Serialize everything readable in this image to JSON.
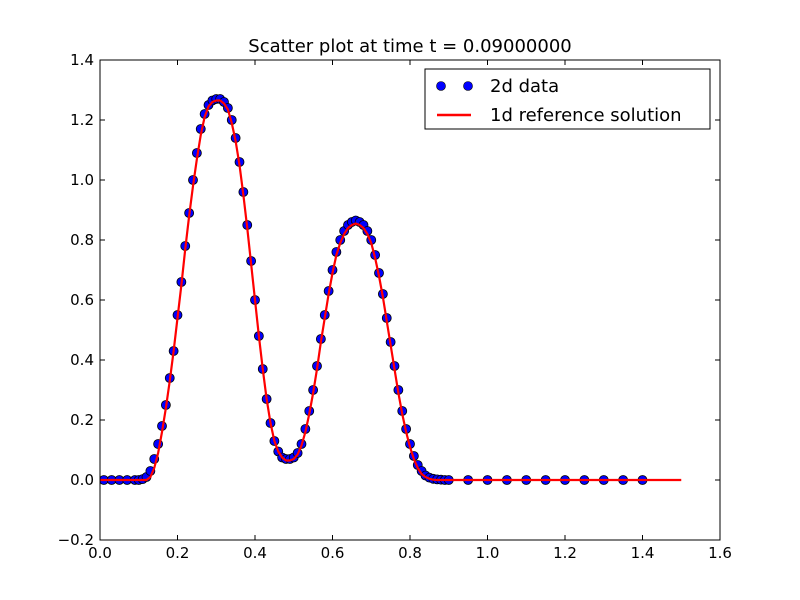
{
  "chart_data": {
    "type": "scatter",
    "title": "Scatter plot at time t =      0.09000000",
    "xlabel": "",
    "ylabel": "",
    "xlim": [
      0.0,
      1.6
    ],
    "ylim": [
      -0.2,
      1.4
    ],
    "xticks": [
      0.0,
      0.2,
      0.4,
      0.6,
      0.8,
      1.0,
      1.2,
      1.4,
      1.6
    ],
    "yticks": [
      -0.2,
      0.0,
      0.2,
      0.4,
      0.6,
      0.8,
      1.0,
      1.2,
      1.4
    ],
    "xtick_labels": [
      "0.0",
      "0.2",
      "0.4",
      "0.6",
      "0.8",
      "1.0",
      "1.2",
      "1.4",
      "1.6"
    ],
    "ytick_labels": [
      "−0.2",
      "0.0",
      "0.2",
      "0.4",
      "0.6",
      "0.8",
      "1.0",
      "1.2",
      "1.4"
    ],
    "grid": false,
    "legend_position": "top-right",
    "series": [
      {
        "name": "2d data",
        "kind": "scatter",
        "color": "#0000ff",
        "edge_color": "#000000",
        "x": [
          0.01,
          0.03,
          0.05,
          0.07,
          0.09,
          0.1,
          0.11,
          0.12,
          0.13,
          0.14,
          0.15,
          0.16,
          0.17,
          0.18,
          0.19,
          0.2,
          0.21,
          0.22,
          0.23,
          0.24,
          0.25,
          0.26,
          0.27,
          0.28,
          0.29,
          0.3,
          0.31,
          0.32,
          0.33,
          0.34,
          0.35,
          0.36,
          0.37,
          0.38,
          0.39,
          0.4,
          0.41,
          0.42,
          0.43,
          0.44,
          0.45,
          0.46,
          0.47,
          0.48,
          0.49,
          0.5,
          0.51,
          0.52,
          0.53,
          0.54,
          0.55,
          0.56,
          0.57,
          0.58,
          0.59,
          0.6,
          0.61,
          0.62,
          0.63,
          0.64,
          0.65,
          0.66,
          0.67,
          0.68,
          0.69,
          0.7,
          0.71,
          0.72,
          0.73,
          0.74,
          0.75,
          0.76,
          0.77,
          0.78,
          0.79,
          0.8,
          0.81,
          0.82,
          0.83,
          0.84,
          0.85,
          0.86,
          0.87,
          0.88,
          0.89,
          0.9,
          0.95,
          1.0,
          1.05,
          1.1,
          1.15,
          1.2,
          1.25,
          1.3,
          1.35,
          1.4
        ],
        "y": [
          0.0,
          0.0,
          0.0,
          0.0,
          0.0,
          0.0,
          0.003,
          0.01,
          0.03,
          0.07,
          0.12,
          0.18,
          0.25,
          0.34,
          0.43,
          0.55,
          0.66,
          0.78,
          0.89,
          1.0,
          1.09,
          1.17,
          1.22,
          1.25,
          1.265,
          1.27,
          1.27,
          1.26,
          1.24,
          1.2,
          1.14,
          1.06,
          0.96,
          0.85,
          0.73,
          0.6,
          0.48,
          0.37,
          0.27,
          0.19,
          0.13,
          0.095,
          0.075,
          0.07,
          0.07,
          0.075,
          0.09,
          0.12,
          0.17,
          0.23,
          0.3,
          0.38,
          0.47,
          0.55,
          0.63,
          0.7,
          0.76,
          0.8,
          0.83,
          0.85,
          0.86,
          0.865,
          0.86,
          0.85,
          0.83,
          0.8,
          0.75,
          0.69,
          0.62,
          0.54,
          0.46,
          0.38,
          0.3,
          0.23,
          0.17,
          0.12,
          0.08,
          0.05,
          0.03,
          0.015,
          0.008,
          0.004,
          0.002,
          0.001,
          0.0,
          0.0,
          0.0,
          0.0,
          0.0,
          0.0,
          0.0,
          0.0,
          0.0,
          0.0,
          0.0,
          0.0
        ]
      },
      {
        "name": "1d reference solution",
        "kind": "line",
        "color": "#ff0000",
        "x": [
          0.0,
          0.05,
          0.1,
          0.11,
          0.12,
          0.13,
          0.14,
          0.15,
          0.16,
          0.17,
          0.18,
          0.19,
          0.2,
          0.21,
          0.22,
          0.23,
          0.24,
          0.25,
          0.26,
          0.27,
          0.28,
          0.29,
          0.3,
          0.31,
          0.32,
          0.33,
          0.34,
          0.35,
          0.36,
          0.37,
          0.38,
          0.39,
          0.4,
          0.41,
          0.42,
          0.43,
          0.44,
          0.45,
          0.46,
          0.47,
          0.48,
          0.49,
          0.5,
          0.51,
          0.52,
          0.53,
          0.54,
          0.55,
          0.56,
          0.57,
          0.58,
          0.59,
          0.6,
          0.61,
          0.62,
          0.63,
          0.64,
          0.65,
          0.66,
          0.67,
          0.68,
          0.69,
          0.7,
          0.71,
          0.72,
          0.73,
          0.74,
          0.75,
          0.76,
          0.77,
          0.78,
          0.79,
          0.8,
          0.81,
          0.82,
          0.83,
          0.84,
          0.85,
          0.86,
          0.87,
          0.88,
          0.89,
          0.9,
          1.0,
          1.2,
          1.4,
          1.5
        ],
        "y": [
          0.0,
          0.0,
          0.0,
          0.0,
          0.0,
          0.01,
          0.04,
          0.09,
          0.16,
          0.24,
          0.33,
          0.43,
          0.54,
          0.65,
          0.77,
          0.88,
          0.98,
          1.07,
          1.15,
          1.21,
          1.245,
          1.26,
          1.265,
          1.265,
          1.255,
          1.235,
          1.19,
          1.13,
          1.05,
          0.95,
          0.84,
          0.72,
          0.6,
          0.48,
          0.37,
          0.27,
          0.19,
          0.13,
          0.095,
          0.075,
          0.065,
          0.065,
          0.07,
          0.085,
          0.115,
          0.16,
          0.22,
          0.29,
          0.37,
          0.46,
          0.54,
          0.62,
          0.69,
          0.75,
          0.79,
          0.82,
          0.84,
          0.85,
          0.855,
          0.85,
          0.84,
          0.82,
          0.79,
          0.74,
          0.68,
          0.61,
          0.53,
          0.45,
          0.37,
          0.29,
          0.22,
          0.16,
          0.11,
          0.07,
          0.04,
          0.02,
          0.01,
          0.004,
          0.001,
          0.0,
          0.0,
          0.0,
          0.0,
          0.0,
          0.0,
          0.0,
          0.0
        ]
      }
    ]
  }
}
